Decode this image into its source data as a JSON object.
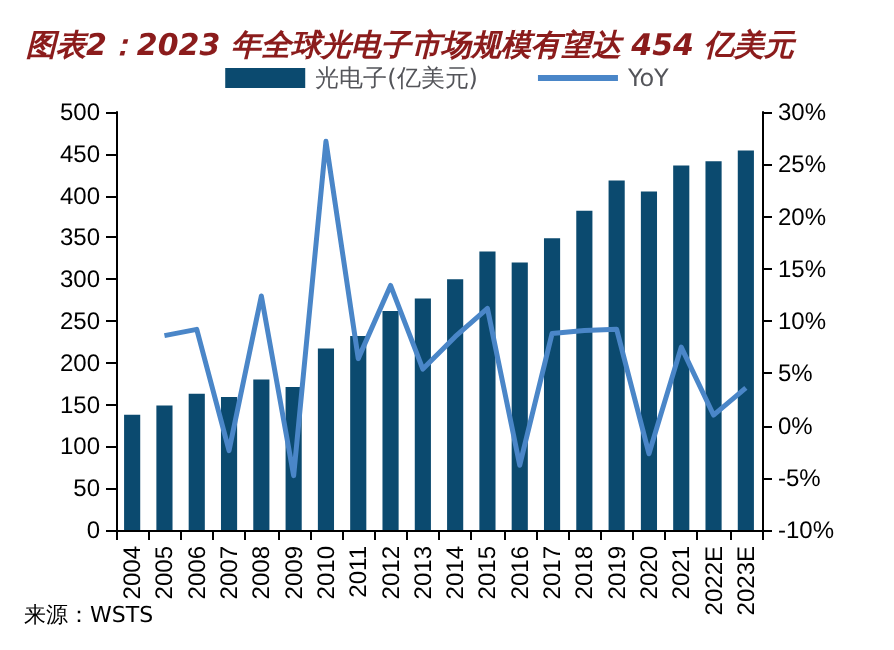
{
  "chart_data": {
    "type": "bar",
    "title": "图表2：2023 年全球光电子市场规模有望达 454 亿美元",
    "categories": [
      "2004",
      "2005",
      "2006",
      "2007",
      "2008",
      "2009",
      "2010",
      "2011",
      "2012",
      "2013",
      "2014",
      "2015",
      "2016",
      "2017",
      "2018",
      "2019",
      "2020",
      "2021",
      "2022E",
      "2023E"
    ],
    "series": [
      {
        "name": "光电子(亿美元)",
        "color": "#0b4a6f",
        "values": [
          138,
          149,
          163,
          159,
          180,
          171,
          217,
          232,
          262,
          277,
          300,
          333,
          320,
          349,
          382,
          418,
          405,
          436,
          441,
          454
        ]
      },
      {
        "name": "YoY",
        "type": "line",
        "axis": "y2",
        "color": "#4a86c8",
        "values": [
          null,
          8.6,
          9.2,
          -2.4,
          12.4,
          -4.8,
          27.2,
          6.4,
          13.4,
          5.4,
          8.5,
          11.2,
          -3.8,
          8.8,
          9.1,
          9.2,
          -2.7,
          7.5,
          1.0,
          3.6
        ]
      }
    ],
    "ylim": [
      0,
      500
    ],
    "yticks": [
      0,
      50,
      100,
      150,
      200,
      250,
      300,
      350,
      400,
      450,
      500
    ],
    "y2lim": [
      -10,
      30
    ],
    "y2ticks": [
      {
        "value": -10,
        "label": "-10%"
      },
      {
        "value": -5,
        "label": "-5%"
      },
      {
        "value": 0,
        "label": "0%"
      },
      {
        "value": 5,
        "label": "5%"
      },
      {
        "value": 10,
        "label": "10%"
      },
      {
        "value": 15,
        "label": "15%"
      },
      {
        "value": 20,
        "label": "20%"
      },
      {
        "value": 25,
        "label": "25%"
      },
      {
        "value": 30,
        "label": "30%"
      }
    ],
    "legend": "top",
    "marker": "none",
    "line_style": "solid",
    "annotations": [
      "来源：WSTS"
    ]
  }
}
